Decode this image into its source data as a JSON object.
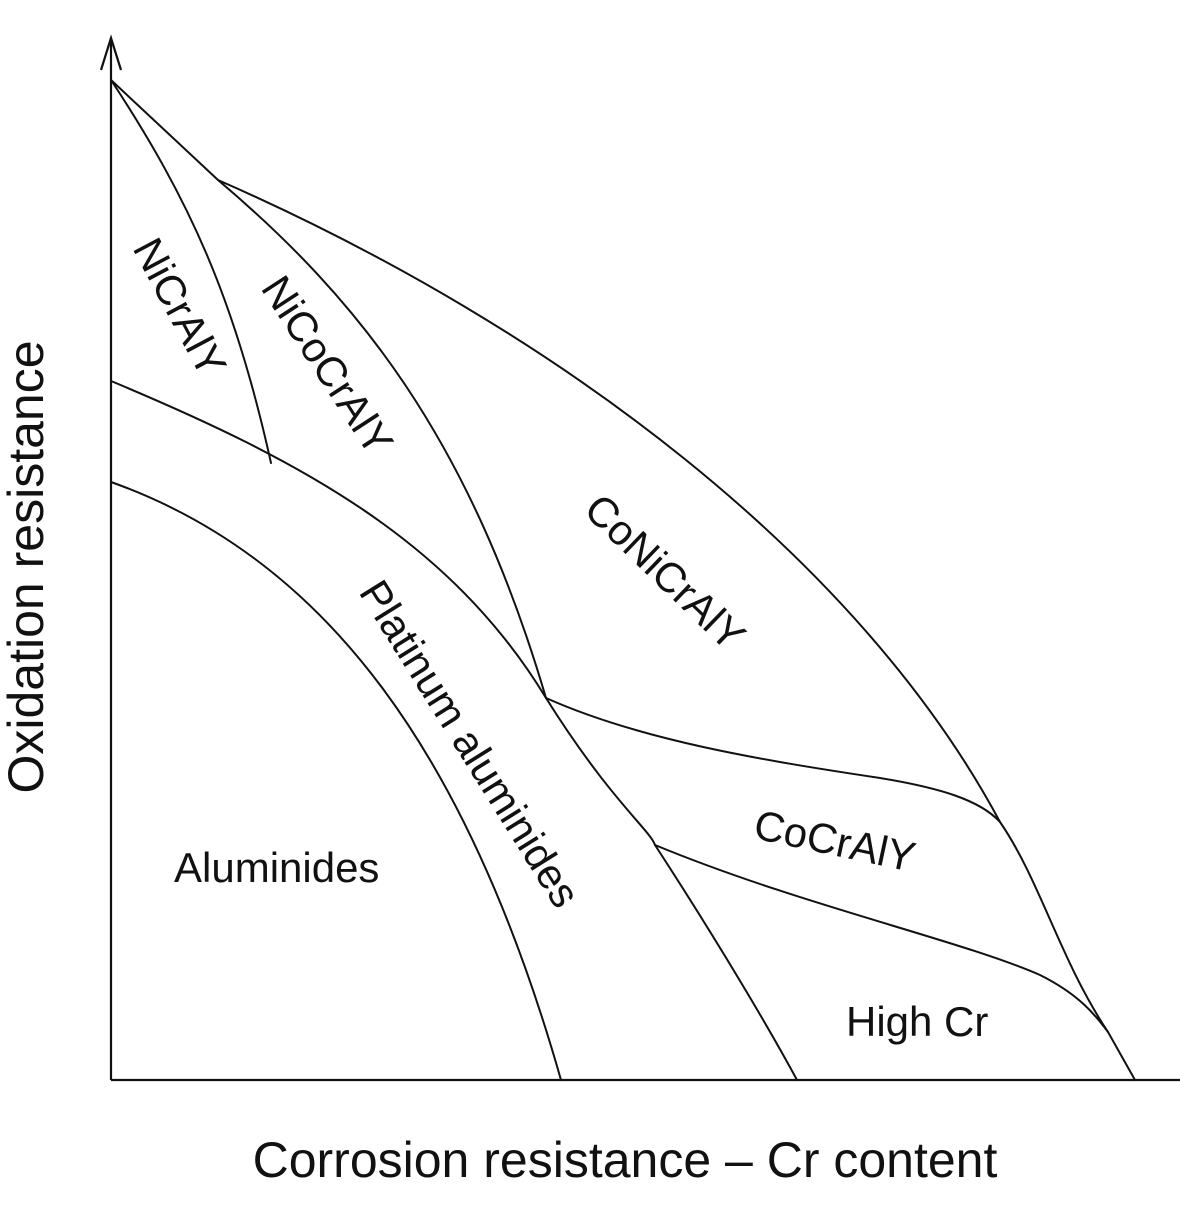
{
  "axes": {
    "x_label": "Corrosion resistance – Cr content",
    "y_label": "Oxidation resistance"
  },
  "regions": {
    "nicraly": "NiCrAlY",
    "nicocraly": "NiCoCrAlY",
    "conicraly": "CoNiCrAlY",
    "platinum_aluminides": "Platinum aluminides",
    "cocraly": "CoCrAlY",
    "aluminides": "Aluminides",
    "high_cr": "High Cr"
  },
  "colors": {
    "line": "#111111",
    "background": "#ffffff"
  }
}
